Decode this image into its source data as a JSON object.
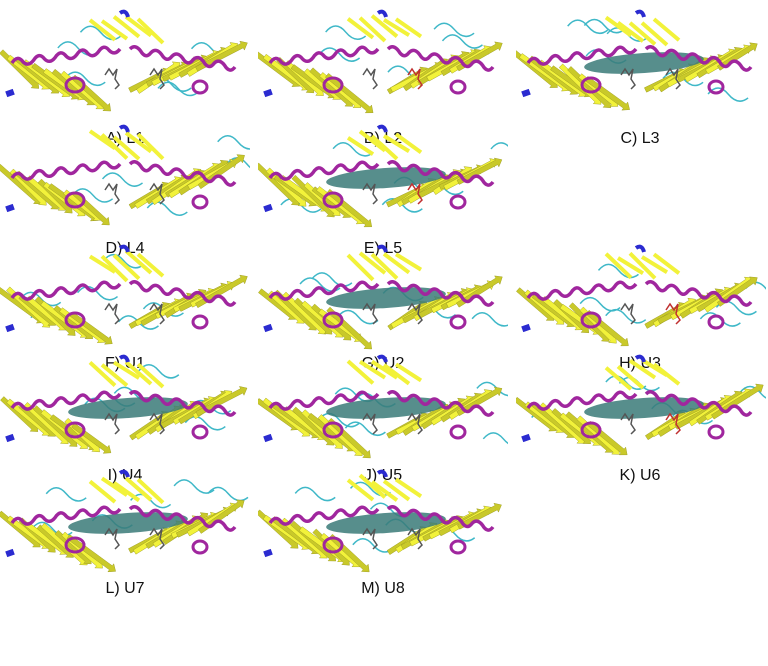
{
  "colors": {
    "strand": "#f2f23a",
    "strand_dark": "#c9c92a",
    "helix": "#a0269e",
    "coil": "#3fb8c8",
    "terminus": "#2b2bd0",
    "ligand": "#555555",
    "ligand_red": "#c03030",
    "surface": "#3a7a78"
  },
  "panels": [
    {
      "label": "A) L1",
      "surface": false
    },
    {
      "label": "B) L2",
      "surface": false
    },
    {
      "label": "C) L3",
      "surface": true
    },
    {
      "label": "D) L4",
      "surface": false
    },
    {
      "label": "E) L5",
      "surface": true
    },
    {
      "label": "F) U1",
      "surface": false
    },
    {
      "label": "G) U2",
      "surface": true
    },
    {
      "label": "H) U3",
      "surface": false
    },
    {
      "label": "I) U4",
      "surface": true
    },
    {
      "label": "J) U5",
      "surface": true
    },
    {
      "label": "K) U6",
      "surface": true
    },
    {
      "label": "L) U7",
      "surface": true
    },
    {
      "label": "M) U8",
      "surface": true
    }
  ]
}
